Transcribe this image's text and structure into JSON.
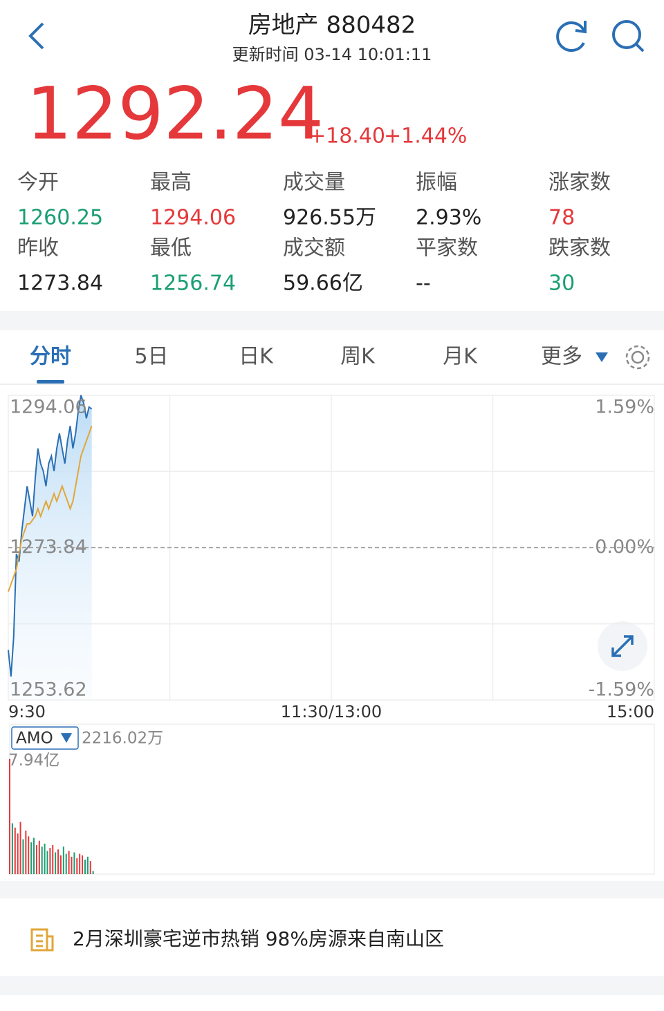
{
  "header": {
    "title": "房地产 880482",
    "updated": "更新时间 03-14 10:01:11"
  },
  "quote": {
    "price": "1292.24",
    "change": "+18.40",
    "percent": "+1.44%",
    "color": "#e5383b"
  },
  "stats": [
    [
      {
        "label": "今开",
        "value": "1260.25",
        "color": "#1a9e74"
      },
      {
        "label": "最高",
        "value": "1294.06",
        "color": "#e5383b"
      },
      {
        "label": "成交量",
        "value": "926.55万",
        "color": "#222222"
      },
      {
        "label": "振幅",
        "value": "2.93%",
        "color": "#222222"
      },
      {
        "label": "涨家数",
        "value": "78",
        "color": "#e5383b"
      }
    ],
    [
      {
        "label": "昨收",
        "value": "1273.84",
        "color": "#222222"
      },
      {
        "label": "最低",
        "value": "1256.74",
        "color": "#1a9e74"
      },
      {
        "label": "成交额",
        "value": "59.66亿",
        "color": "#222222"
      },
      {
        "label": "平家数",
        "value": "--",
        "color": "#222222"
      },
      {
        "label": "跌家数",
        "value": "30",
        "color": "#1a9e74"
      }
    ]
  ],
  "tabs": {
    "items": [
      "分时",
      "5日",
      "日K",
      "周K",
      "月K",
      "更多"
    ],
    "active": 0
  },
  "chart": {
    "type": "line",
    "ylim": [
      1253.62,
      1294.06
    ],
    "yticks": [
      1253.62,
      1273.84,
      1294.06
    ],
    "y2lim": [
      -1.59,
      1.59
    ],
    "y2ticks": [
      {
        "value": -1.59,
        "label": "-1.59%"
      },
      {
        "value": 0,
        "label": "0.00%"
      },
      {
        "value": 1.59,
        "label": "1.59%"
      }
    ],
    "xticks": [
      "9:30",
      "11:30/13:00",
      "15:00"
    ],
    "series": [
      {
        "name": "price",
        "color": "#2a6fb5",
        "values": [
          1260.25,
          1256.74,
          1262,
          1273,
          1272,
          1276,
          1279,
          1282,
          1280,
          1278,
          1283,
          1287,
          1285,
          1284,
          1282,
          1285,
          1286,
          1284,
          1287,
          1289,
          1287,
          1285,
          1288,
          1290,
          1287,
          1289,
          1292,
          1294.06,
          1293,
          1291,
          1292.5,
          1292.24
        ]
      },
      {
        "name": "average",
        "color": "#e0a63a",
        "values": [
          1268,
          1269,
          1270,
          1271,
          1273,
          1275,
          1276,
          1277,
          1277,
          1277.5,
          1278,
          1279,
          1278,
          1279,
          1280,
          1279,
          1280,
          1281,
          1280,
          1281,
          1282,
          1281,
          1280,
          1279,
          1280,
          1282,
          1284,
          1286,
          1287,
          1288,
          1289,
          1290
        ]
      }
    ],
    "volume": {
      "name": "AMO",
      "current": "2216.02万",
      "ylim": [
        0,
        7.94
      ],
      "yticks": [
        {
          "value": 7.94,
          "label": "7.94亿"
        }
      ],
      "values": [
        7.94,
        3.5,
        3.2,
        2.8,
        3.6,
        2.4,
        3.0,
        2.6,
        2.2,
        2.5,
        2.0,
        2.3,
        1.9,
        2.1,
        1.6,
        1.8,
        2.0,
        1.5,
        1.7,
        1.3,
        1.9,
        1.4,
        1.6,
        1.2,
        1.5,
        1.1,
        1.4,
        1.3,
        1.0,
        1.2,
        0.9,
        0.221602
      ],
      "colors": [
        "#e5383b",
        "#1a9e74",
        "#e5383b",
        "#e5383b",
        "#e5383b",
        "#1a9e74",
        "#e5383b",
        "#e5383b",
        "#1a9e74",
        "#1a9e74",
        "#e5383b",
        "#e5383b",
        "#1a9e74",
        "#1a9e74",
        "#1a9e74",
        "#e5383b",
        "#e5383b",
        "#1a9e74",
        "#e5383b",
        "#e5383b",
        "#1a9e74",
        "#1a9e74",
        "#e5383b",
        "#e5383b",
        "#1a9e74",
        "#e5383b",
        "#e5383b",
        "#e5383b",
        "#1a9e74",
        "#1a9e74",
        "#e5383b",
        "#1a9e74"
      ]
    }
  },
  "news": {
    "headline": "2月深圳豪宅逆市热销 98%房源来自南山区"
  }
}
